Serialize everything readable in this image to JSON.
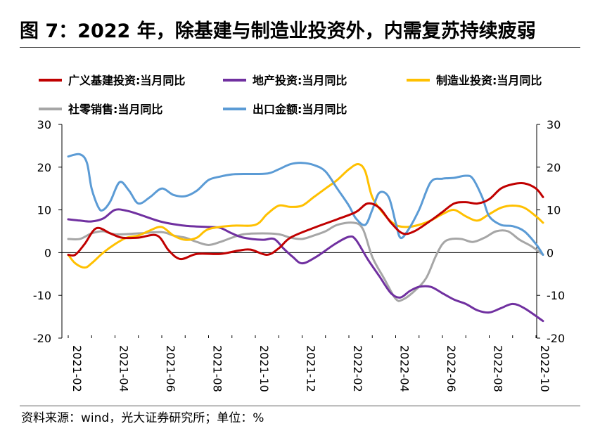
{
  "title": "图 7：2022 年，除基建与制造业投资外，内需复苏持续疲弱",
  "source": "资料来源：wind，光大证券研究所；单位：%",
  "chart_data": {
    "type": "line",
    "title": "图 7：2022 年，除基建与制造业投资外，内需复苏持续疲弱",
    "xlabel": "",
    "ylabel": "",
    "unit": "%",
    "ylim": [
      -20,
      30
    ],
    "y2lim": [
      -20,
      30
    ],
    "yticks": [
      "30",
      "20",
      "10",
      "0",
      "-10",
      "-20"
    ],
    "y2ticks": [
      "30",
      "20",
      "10",
      "0",
      "-10",
      "-20"
    ],
    "grid": false,
    "legend_position": "top",
    "x_start": "2021-02",
    "x_end": "2022-10",
    "x_tick_labels": [
      "2021-02",
      "2021-04",
      "2021-06",
      "2021-08",
      "2021-10",
      "2021-12",
      "2022-02",
      "2022-04",
      "2022-06",
      "2022-08",
      "2022-10"
    ],
    "series": [
      {
        "name": "广义基建投资:当月同比",
        "color": "#c00000",
        "points": [
          [
            0,
            -0.5
          ],
          [
            0.3,
            -0.5
          ],
          [
            0.7,
            2
          ],
          [
            1.2,
            5.7
          ],
          [
            1.8,
            4.5
          ],
          [
            2.3,
            3.5
          ],
          [
            3,
            3.5
          ],
          [
            3.8,
            4
          ],
          [
            4.3,
            0.5
          ],
          [
            4.8,
            -1.5
          ],
          [
            5.5,
            -0.3
          ],
          [
            6.5,
            -0.3
          ],
          [
            7.3,
            0.5
          ],
          [
            7.8,
            0.7
          ],
          [
            8.5,
            -0.5
          ],
          [
            9,
            1
          ],
          [
            9.5,
            3.5
          ],
          [
            10.5,
            5.8
          ],
          [
            11.5,
            7.8
          ],
          [
            12.3,
            9.5
          ],
          [
            12.8,
            11.5
          ],
          [
            13.3,
            10.5
          ],
          [
            13.8,
            7
          ],
          [
            14.3,
            4.5
          ],
          [
            14.8,
            5
          ],
          [
            15.5,
            7.5
          ],
          [
            16,
            9.5
          ],
          [
            16.5,
            11.5
          ],
          [
            17,
            11.8
          ],
          [
            17.5,
            11.5
          ],
          [
            18,
            12.5
          ],
          [
            18.5,
            15
          ],
          [
            19,
            16
          ],
          [
            19.5,
            16.2
          ],
          [
            20,
            15
          ],
          [
            20.3,
            13
          ]
        ]
      },
      {
        "name": "地产投资:当月同比",
        "color": "#7030a0",
        "points": [
          [
            0,
            7.8
          ],
          [
            0.5,
            7.5
          ],
          [
            1,
            7.3
          ],
          [
            1.5,
            8
          ],
          [
            2,
            10
          ],
          [
            2.5,
            9.8
          ],
          [
            3,
            9
          ],
          [
            4,
            7.2
          ],
          [
            5,
            6.3
          ],
          [
            6,
            6
          ],
          [
            6.5,
            5.8
          ],
          [
            7,
            4.5
          ],
          [
            7.5,
            3.5
          ],
          [
            8.3,
            3
          ],
          [
            8.8,
            3.2
          ],
          [
            9.2,
            1
          ],
          [
            9.6,
            -1
          ],
          [
            10,
            -2.5
          ],
          [
            10.6,
            -1
          ],
          [
            11.4,
            2
          ],
          [
            12,
            3.7
          ],
          [
            12.3,
            3
          ],
          [
            12.8,
            -1.5
          ],
          [
            13.3,
            -5.5
          ],
          [
            13.8,
            -9.5
          ],
          [
            14.2,
            -10.5
          ],
          [
            14.6,
            -9
          ],
          [
            15,
            -8
          ],
          [
            15.5,
            -8
          ],
          [
            16,
            -9.5
          ],
          [
            16.5,
            -11
          ],
          [
            17,
            -12
          ],
          [
            17.5,
            -13.5
          ],
          [
            18,
            -14
          ],
          [
            18.5,
            -13
          ],
          [
            19,
            -12
          ],
          [
            19.5,
            -13
          ],
          [
            20.3,
            -16
          ]
        ]
      },
      {
        "name": "制造业投资:当月同比",
        "color": "#ffc000",
        "points": [
          [
            0,
            -0.5
          ],
          [
            0.3,
            -2.5
          ],
          [
            0.7,
            -3.5
          ],
          [
            1,
            -2.5
          ],
          [
            1.5,
            0
          ],
          [
            2,
            2
          ],
          [
            2.5,
            3.5
          ],
          [
            3,
            4
          ],
          [
            3.5,
            5.2
          ],
          [
            4,
            6
          ],
          [
            4.5,
            4
          ],
          [
            5,
            3
          ],
          [
            5.5,
            3.5
          ],
          [
            6,
            5.5
          ],
          [
            7,
            6.3
          ],
          [
            8,
            6.5
          ],
          [
            8.5,
            9
          ],
          [
            9,
            11
          ],
          [
            9.5,
            10.7
          ],
          [
            10,
            11
          ],
          [
            10.5,
            13
          ],
          [
            11,
            15
          ],
          [
            11.5,
            17
          ],
          [
            12,
            19.5
          ],
          [
            12.4,
            20.7
          ],
          [
            12.7,
            19
          ],
          [
            13,
            13
          ],
          [
            13.5,
            9
          ],
          [
            14,
            6.5
          ],
          [
            14.5,
            6
          ],
          [
            15,
            6.5
          ],
          [
            15.5,
            7.5
          ],
          [
            16,
            9
          ],
          [
            16.5,
            10
          ],
          [
            17,
            8.5
          ],
          [
            17.5,
            7.5
          ],
          [
            18,
            9
          ],
          [
            18.5,
            10.5
          ],
          [
            19,
            11
          ],
          [
            19.5,
            10.5
          ],
          [
            20,
            8.5
          ],
          [
            20.3,
            7
          ]
        ]
      },
      {
        "name": "社零销售:当月同比",
        "color": "#a6a6a6",
        "points": [
          [
            0,
            3.2
          ],
          [
            0.5,
            3.2
          ],
          [
            1,
            4.5
          ],
          [
            1.5,
            5
          ],
          [
            2,
            4.3
          ],
          [
            3,
            4.5
          ],
          [
            4,
            4.8
          ],
          [
            4.5,
            4
          ],
          [
            5,
            3.5
          ],
          [
            5.5,
            2.5
          ],
          [
            6,
            1.8
          ],
          [
            6.5,
            2.5
          ],
          [
            7,
            3.5
          ],
          [
            7.5,
            4.3
          ],
          [
            8.3,
            4.5
          ],
          [
            9,
            4.3
          ],
          [
            9.5,
            3.5
          ],
          [
            10,
            3.2
          ],
          [
            10.5,
            4
          ],
          [
            11,
            5
          ],
          [
            11.5,
            6.5
          ],
          [
            12.2,
            7
          ],
          [
            12.6,
            5.5
          ],
          [
            13,
            -1
          ],
          [
            13.5,
            -6
          ],
          [
            14,
            -10.8
          ],
          [
            14.3,
            -11
          ],
          [
            14.8,
            -9
          ],
          [
            15.3,
            -6
          ],
          [
            15.7,
            -1
          ],
          [
            16,
            2
          ],
          [
            16.3,
            3.1
          ],
          [
            16.8,
            3.2
          ],
          [
            17.3,
            2.5
          ],
          [
            17.8,
            3.5
          ],
          [
            18.3,
            5
          ],
          [
            18.8,
            5
          ],
          [
            19.3,
            3
          ],
          [
            19.8,
            1.5
          ],
          [
            20.3,
            -0.5
          ]
        ]
      },
      {
        "name": "出口金额:当月同比",
        "color": "#5b9bd5",
        "points": [
          [
            0,
            22.5
          ],
          [
            0.5,
            23
          ],
          [
            0.8,
            21
          ],
          [
            1,
            15
          ],
          [
            1.3,
            10.5
          ],
          [
            1.5,
            10
          ],
          [
            1.8,
            12
          ],
          [
            2.2,
            16.5
          ],
          [
            2.6,
            14.5
          ],
          [
            3,
            11.5
          ],
          [
            3.5,
            13
          ],
          [
            4,
            15
          ],
          [
            4.5,
            13.5
          ],
          [
            5,
            13.2
          ],
          [
            5.5,
            14.5
          ],
          [
            6,
            17
          ],
          [
            6.5,
            17.8
          ],
          [
            7,
            18.3
          ],
          [
            7.5,
            18.4
          ],
          [
            8.5,
            18.5
          ],
          [
            9,
            19.5
          ],
          [
            9.5,
            20.7
          ],
          [
            10,
            21
          ],
          [
            10.5,
            20.5
          ],
          [
            11,
            19
          ],
          [
            11.5,
            15
          ],
          [
            12,
            11
          ],
          [
            12.3,
            8
          ],
          [
            12.7,
            6.5
          ],
          [
            13,
            10
          ],
          [
            13.3,
            14
          ],
          [
            13.7,
            13
          ],
          [
            14,
            7
          ],
          [
            14.2,
            3.5
          ],
          [
            14.5,
            5
          ],
          [
            15,
            10
          ],
          [
            15.5,
            16.5
          ],
          [
            16,
            17.3
          ],
          [
            16.5,
            17.5
          ],
          [
            17,
            18
          ],
          [
            17.3,
            17.3
          ],
          [
            17.7,
            13
          ],
          [
            18,
            8.5
          ],
          [
            18.5,
            6.5
          ],
          [
            19,
            6.2
          ],
          [
            19.5,
            5
          ],
          [
            20,
            2
          ],
          [
            20.3,
            -0.5
          ]
        ]
      }
    ]
  }
}
